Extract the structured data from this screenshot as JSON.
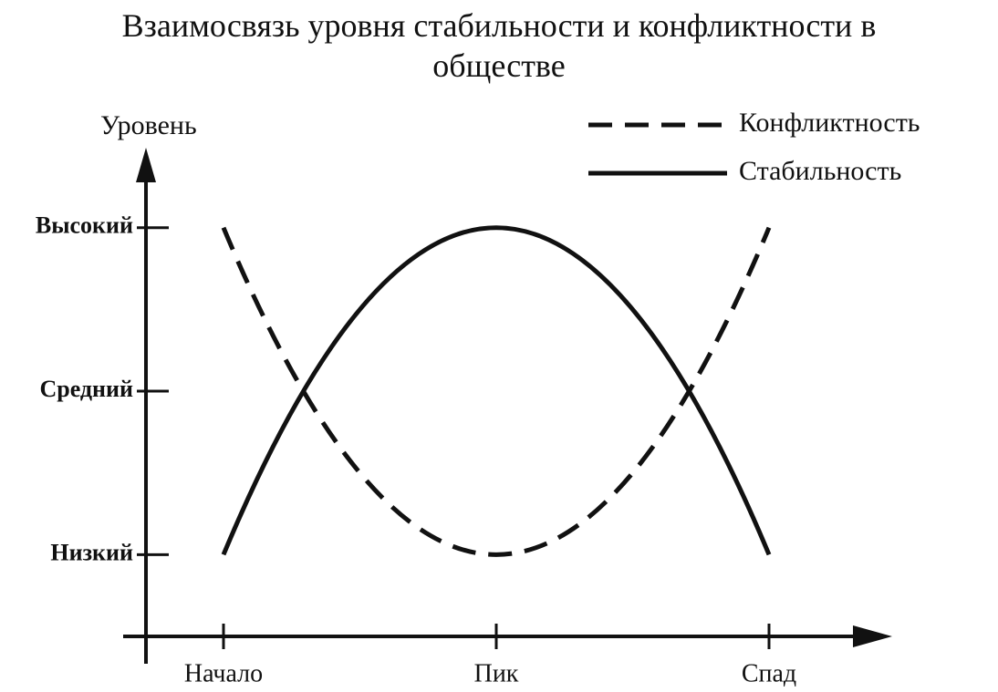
{
  "chart_data": {
    "type": "line",
    "title": "Взаимосвязь уровня стабильности и конфликтности в обществе",
    "y_label": "Уровень",
    "categories": [
      "Начало",
      "Пик",
      "Спад"
    ],
    "series": [
      {
        "name": "Конфликтность",
        "color": "#111111",
        "line_style": "dashed",
        "values": [
          3,
          1,
          3
        ]
      },
      {
        "name": "Стабильность",
        "color": "#111111",
        "line_style": "solid",
        "values": [
          1,
          3,
          1
        ]
      }
    ],
    "ylim": [
      0.5,
      3.4
    ],
    "yticks": [
      {
        "value": 1,
        "label": "Низкий"
      },
      {
        "value": 2,
        "label": "Средний"
      },
      {
        "value": 3,
        "label": "Высокий"
      }
    ],
    "legend": "top-right",
    "grid": false
  }
}
